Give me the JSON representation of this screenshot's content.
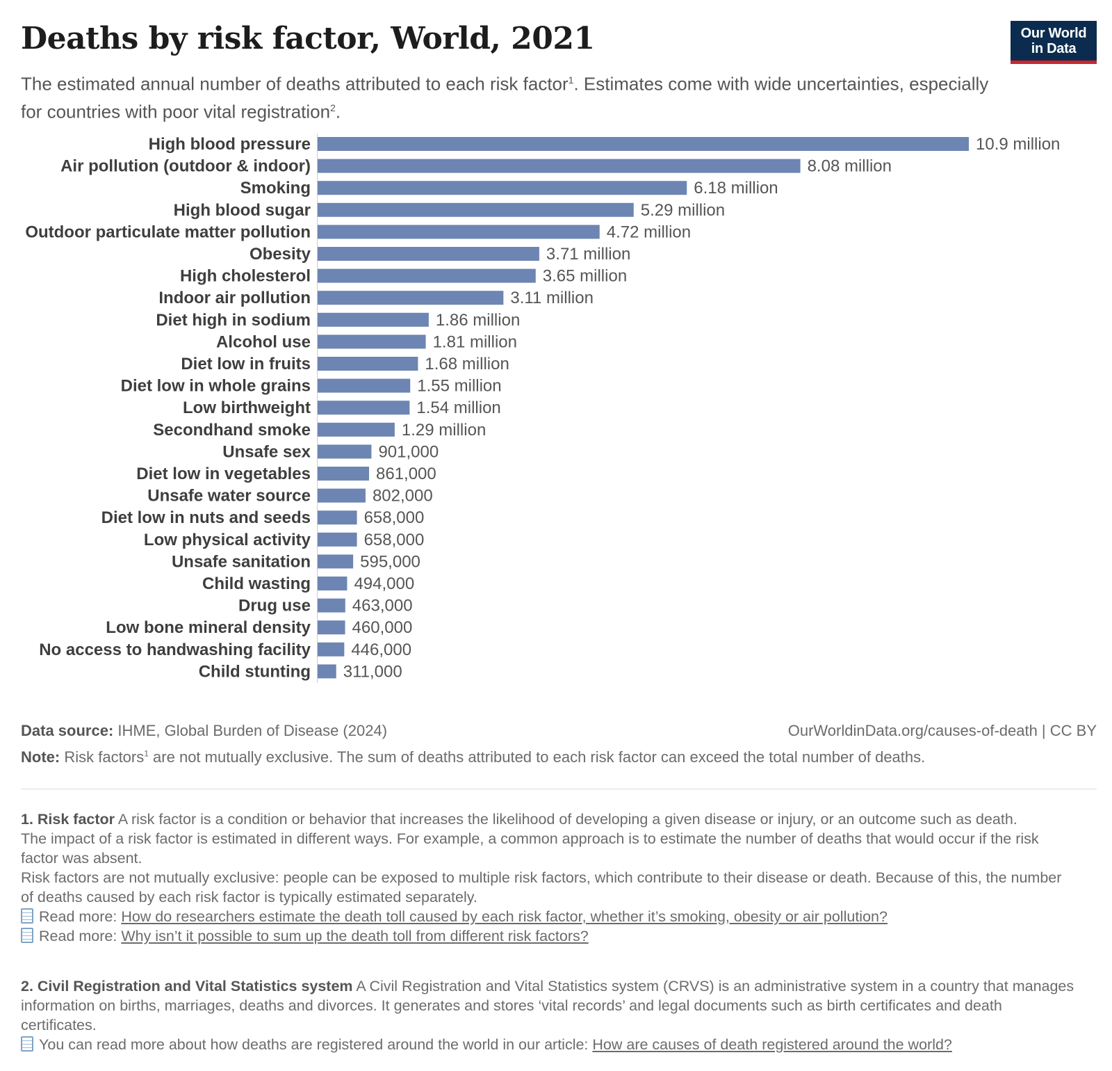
{
  "header": {
    "title": "Deaths by risk factor, World, 2021",
    "subtitle": "The estimated annual number of deaths attributed to each risk factor",
    "subtitle_sup1": "1",
    "subtitle_mid": ". Estimates come with wide uncertainties, especially for countries with poor vital registration",
    "subtitle_sup2": "2",
    "subtitle_end": ".",
    "logo_line1": "Our World",
    "logo_line2": "in Data"
  },
  "chart_data": {
    "type": "bar",
    "orientation": "horizontal",
    "title": "Deaths by risk factor, World, 2021",
    "categories": [
      "High blood pressure",
      "Air pollution (outdoor & indoor)",
      "Smoking",
      "High blood sugar",
      "Outdoor particulate matter pollution",
      "Obesity",
      "High cholesterol",
      "Indoor air pollution",
      "Diet high in sodium",
      "Alcohol use",
      "Diet low in fruits",
      "Diet low in whole grains",
      "Low birthweight",
      "Secondhand smoke",
      "Unsafe sex",
      "Diet low in vegetables",
      "Unsafe water source",
      "Diet low in nuts and seeds",
      "Low physical activity",
      "Unsafe sanitation",
      "Child wasting",
      "Drug use",
      "Low bone mineral density",
      "No access to handwashing facility",
      "Child stunting"
    ],
    "values": [
      10900000,
      8080000,
      6180000,
      5290000,
      4720000,
      3710000,
      3650000,
      3110000,
      1860000,
      1810000,
      1680000,
      1550000,
      1540000,
      1290000,
      901000,
      861000,
      802000,
      658000,
      658000,
      595000,
      494000,
      463000,
      460000,
      446000,
      311000
    ],
    "value_labels": [
      "10.9 million",
      "8.08 million",
      "6.18 million",
      "5.29 million",
      "4.72 million",
      "3.71 million",
      "3.65 million",
      "3.11 million",
      "1.86 million",
      "1.81 million",
      "1.68 million",
      "1.55 million",
      "1.54 million",
      "1.29 million",
      "901,000",
      "861,000",
      "802,000",
      "658,000",
      "658,000",
      "595,000",
      "494,000",
      "463,000",
      "460,000",
      "446,000",
      "311,000"
    ],
    "xlim": [
      0,
      10900000
    ],
    "bar_color": "#6d85b2",
    "grid": false,
    "legend": "none"
  },
  "footer": {
    "source_label": "Data source:",
    "source_text": " IHME, Global Burden of Disease (2024)",
    "url": "OurWorldinData.org/causes-of-death | CC BY",
    "note_label": "Note:",
    "note_pre": " Risk factors",
    "note_sup": "1",
    "note_post": " are not mutually exclusive. The sum of deaths attributed to each risk factor can exceed the total number of deaths."
  },
  "footnotes": {
    "fn1_title": "1. Risk factor",
    "fn1_text1": " A risk factor is a condition or behavior that increases the likelihood of developing a given disease or injury, or an outcome such as death.",
    "fn1_text2": "The impact of a risk factor is estimated in different ways. For example, a common approach is to estimate the number of deaths that would occur if the risk factor was absent.",
    "fn1_text3": "Risk factors are not mutually exclusive: people can be exposed to multiple risk factors, which contribute to their disease or death. Because of this, the number of deaths caused by each risk factor is typically estimated separately.",
    "read_more_label": "Read more: ",
    "link1": "How do researchers estimate the death toll caused by each risk factor, whether it’s smoking, obesity or air pollution?",
    "link2": "Why isn’t it possible to sum up the death toll from different risk factors?",
    "fn2_title": "2. Civil Registration and Vital Statistics system",
    "fn2_text": " A Civil Registration and Vital Statistics system (CRVS) is an administrative system in a country that manages information on births, marriages, deaths and divorces. It generates and stores ‘vital records’ and legal documents such as birth certificates and death certificates.",
    "fn2_read": "You can read more about how deaths are registered around the world in our article: ",
    "link3": "How are causes of death registered around the world?"
  },
  "colors": {
    "bar": "#6d85b2",
    "logo_bg": "#0c2c4f",
    "logo_accent": "#c8272e"
  }
}
